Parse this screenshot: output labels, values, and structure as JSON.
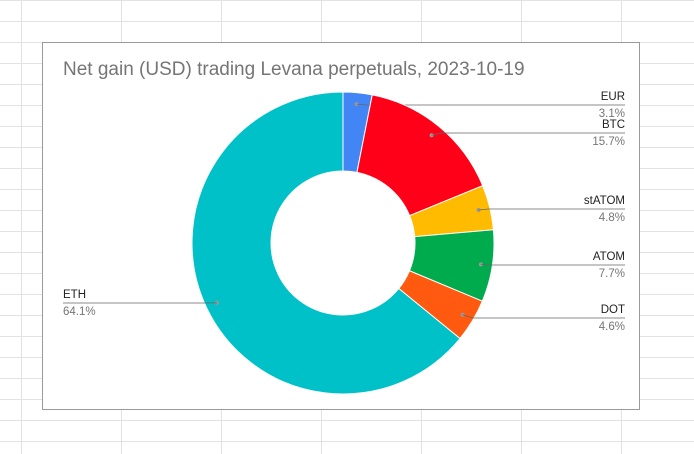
{
  "chart_data": {
    "type": "pie",
    "donut": true,
    "title": "Net gain (USD) trading Levana perpetuals, 2023-10-19",
    "start_angle_deg": 0,
    "direction": "clockwise",
    "slices": [
      {
        "label": "EUR",
        "value": 3.1,
        "pct_label": "3.1%",
        "color": "#4285f4"
      },
      {
        "label": "BTC",
        "value": 15.7,
        "pct_label": "15.7%",
        "color": "#ff0018"
      },
      {
        "label": "stATOM",
        "value": 4.8,
        "pct_label": "4.8%",
        "color": "#ffbb00"
      },
      {
        "label": "ATOM",
        "value": 7.7,
        "pct_label": "7.7%",
        "color": "#00ab4e"
      },
      {
        "label": "DOT",
        "value": 4.6,
        "pct_label": "4.6%",
        "color": "#ff5a10"
      },
      {
        "label": "ETH",
        "value": 64.1,
        "pct_label": "64.1%",
        "color": "#00c1c8"
      }
    ],
    "legend": "none",
    "labels": "outside with leader lines"
  }
}
